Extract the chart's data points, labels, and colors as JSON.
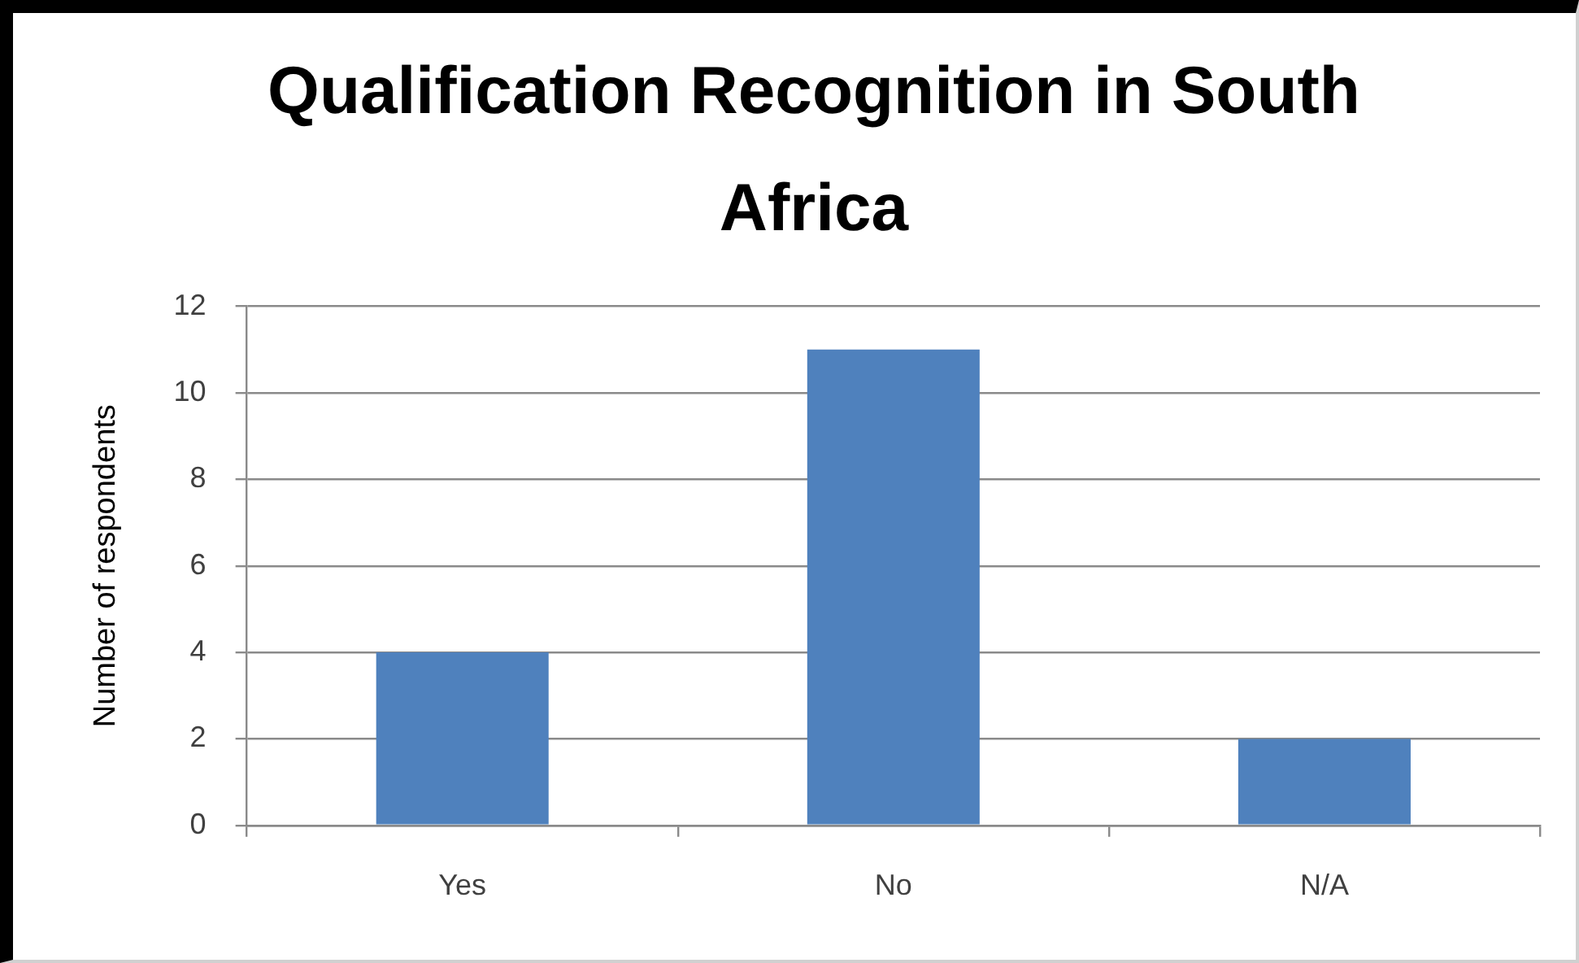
{
  "chart_data": {
    "type": "bar",
    "title": "Qualification Recognition in South Africa",
    "ylabel": "Number of respondents",
    "categories": [
      "Yes",
      "No",
      "N/A"
    ],
    "values": [
      4,
      11,
      2
    ],
    "color": "#4f81bd",
    "ylim": [
      0,
      12
    ],
    "yticks": [
      0,
      2,
      4,
      6,
      8,
      10,
      12
    ],
    "grid": "y",
    "legend": false
  }
}
